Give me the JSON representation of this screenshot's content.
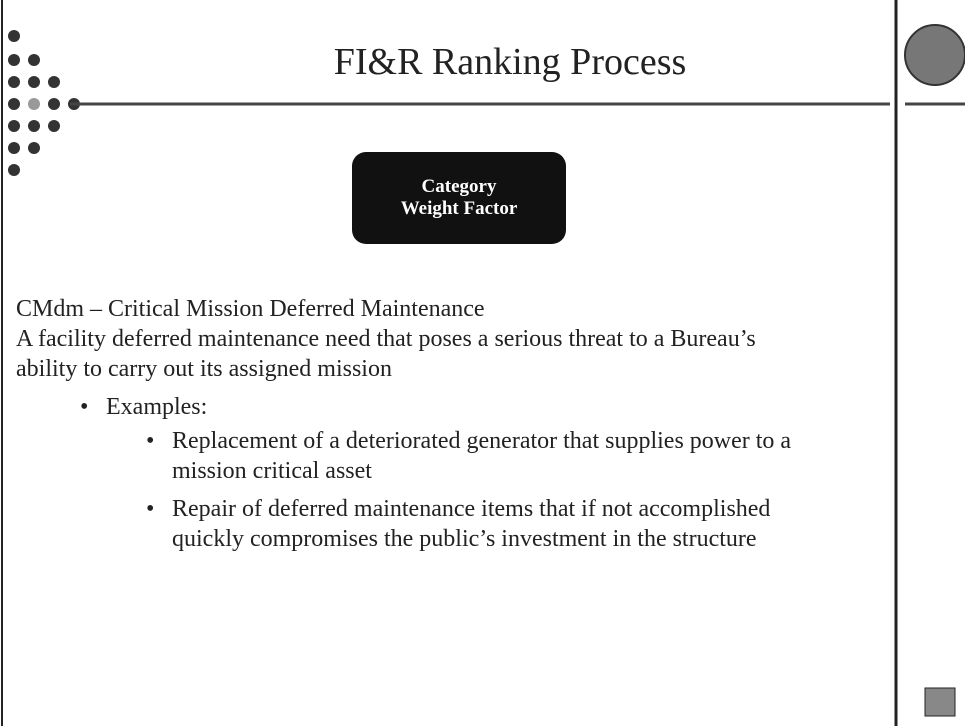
{
  "header": {
    "title": "FI&R Ranking Process"
  },
  "badge": {
    "lines": [
      "Category",
      "Weight Factor"
    ]
  },
  "body": {
    "heading": "CMdm – Critical Mission Deferred Maintenance",
    "definition": "A facility deferred maintenance need that poses a serious threat to a Bureau’s ability to carry out its assigned mission",
    "bullet": "Examples:",
    "subbullets": [
      "Replacement of a deteriorated generator that supplies power to a mission critical asset",
      "Repair of deferred maintenance items that if not accomplished quickly compromises the public’s investment in the structure"
    ]
  }
}
